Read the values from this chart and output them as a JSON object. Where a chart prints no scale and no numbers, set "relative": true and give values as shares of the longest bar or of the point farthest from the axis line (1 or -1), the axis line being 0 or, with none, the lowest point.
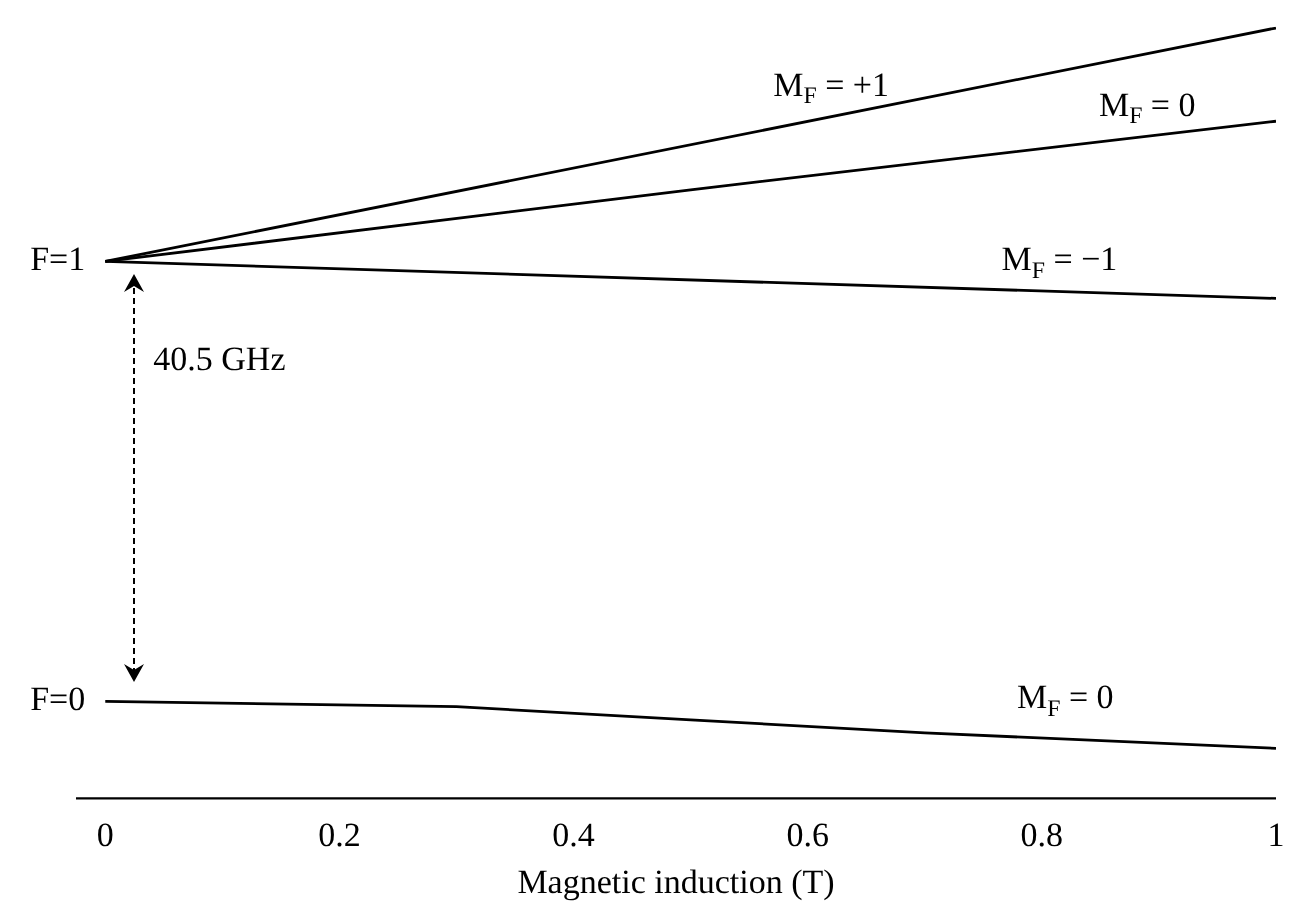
{
  "chart_data": {
    "type": "line",
    "relative": true,
    "xlabel": "Magnetic induction (T)",
    "xlim": [
      -0.025,
      1
    ],
    "xticks": [
      0,
      0.2,
      0.4,
      0.6,
      0.8,
      1
    ],
    "tick_labels": "x",
    "grid": false,
    "legend": false,
    "marker": "none",
    "line_style": "solid",
    "series": [
      {
        "color": "#000000",
        "x": [
          0,
          1
        ],
        "values": [
          0.697,
          1
        ]
      },
      {
        "color": "#000000",
        "x": [
          0,
          0.5,
          1
        ],
        "values": [
          0.697,
          0.79,
          0.879
        ]
      },
      {
        "color": "#000000",
        "x": [
          0,
          1
        ],
        "values": [
          0.697,
          0.649
        ]
      },
      {
        "color": "#000000",
        "x": [
          0,
          0.3,
          0.5,
          0.7,
          1
        ],
        "values": [
          0.126,
          0.119,
          0.102,
          0.085,
          0.065
        ]
      }
    ],
    "annotations": [
      {
        "text": "F=1",
        "x": 0,
        "y": 0.697
      },
      {
        "text": "F=0",
        "x": 0,
        "y": 0.126
      },
      {
        "text": "M$_{F}$ = +1",
        "x": 0.62,
        "y": 0.885
      },
      {
        "text": "M$_{F}$ = 0",
        "x": 0.89,
        "y": 0.859
      },
      {
        "text": "M$_{F}$ = −1",
        "x": 0.815,
        "y": 0.658
      },
      {
        "text": "M$_{F}$ = 0",
        "x": 0.82,
        "y": 0.09
      },
      "40.5 GHz"
    ]
  }
}
